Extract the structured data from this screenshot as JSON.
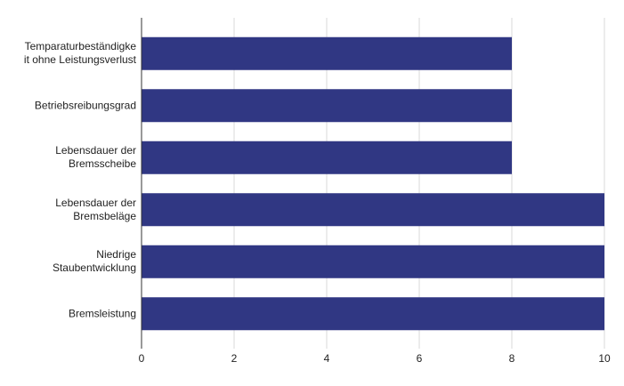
{
  "chart_data": {
    "type": "bar",
    "orientation": "horizontal",
    "categories": [
      "Temparaturbeständigkeit ohne Leistungsverlust",
      "Betriebsreibungsgrad",
      "Lebensdauer der Bremsscheibe",
      "Lebensdauer der Bremsbeläge",
      "Niedrige Staubentwicklung",
      "Bremsleistung"
    ],
    "values": [
      8,
      8,
      8,
      10,
      10,
      10
    ],
    "color": "#303783",
    "xlim": [
      0,
      10
    ],
    "xticks": [
      0,
      2,
      4,
      6,
      8,
      10
    ],
    "grid": true
  }
}
